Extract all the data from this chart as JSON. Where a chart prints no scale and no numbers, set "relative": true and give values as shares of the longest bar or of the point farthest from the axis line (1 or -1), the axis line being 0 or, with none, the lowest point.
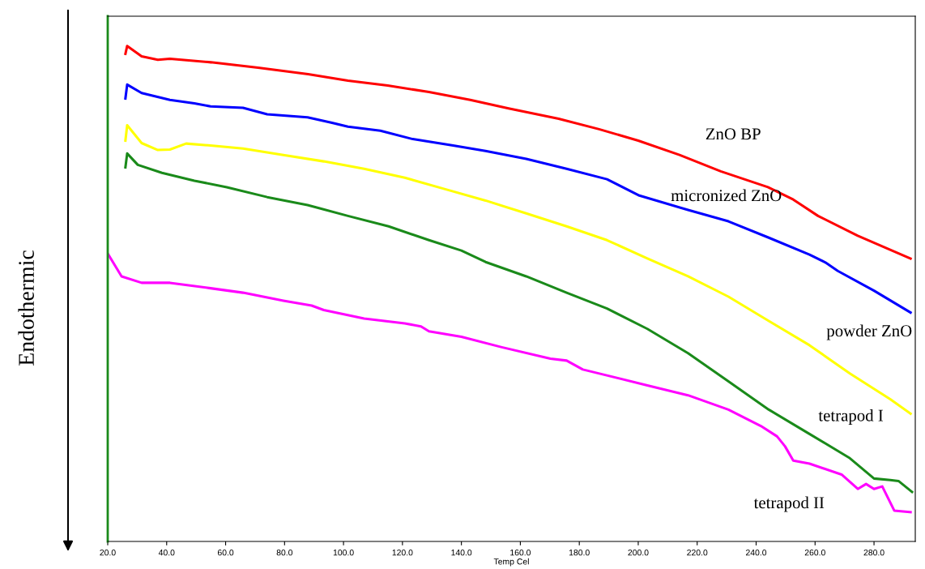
{
  "chart_data": {
    "type": "line",
    "relative": true,
    "xlabel": "Temp Cel",
    "ylabel": "Endothermic",
    "legend": false,
    "grid": false,
    "marker": "none",
    "line_style": "solid",
    "xlim": [
      20,
      294
    ],
    "xticks": [
      {
        "value": 20,
        "label": "20.0"
      },
      {
        "value": 40,
        "label": "40.0"
      },
      {
        "value": 60,
        "label": "60.0"
      },
      {
        "value": 80,
        "label": "80.0"
      },
      {
        "value": 100,
        "label": "100.0"
      },
      {
        "value": 120,
        "label": "120.0"
      },
      {
        "value": 140,
        "label": "140.0"
      },
      {
        "value": 160,
        "label": "160.0"
      },
      {
        "value": 180,
        "label": "180.0"
      },
      {
        "value": 200,
        "label": "200.0"
      },
      {
        "value": 220,
        "label": "220.0"
      },
      {
        "value": 240,
        "label": "240.0"
      },
      {
        "value": 260,
        "label": "260.0"
      },
      {
        "value": 280,
        "label": "280.0"
      }
    ],
    "series": [
      {
        "name": "ZnO BP",
        "color": "#ff0000",
        "x": [
          26.0,
          26.6,
          31.5,
          37.0,
          41.1,
          55.0,
          71.0,
          88.0,
          101.5,
          115.0,
          129.0,
          143.0,
          156.0,
          173.0,
          186.7,
          200.0,
          214.0,
          228.0,
          244.0,
          252.6,
          261.0,
          274.5,
          292.4
        ],
        "values": [
          0.984,
          1.0,
          0.979,
          0.972,
          0.974,
          0.967,
          0.956,
          0.943,
          0.93,
          0.92,
          0.907,
          0.891,
          0.874,
          0.853,
          0.832,
          0.809,
          0.78,
          0.747,
          0.715,
          0.69,
          0.657,
          0.617,
          0.571
        ]
      },
      {
        "name": "micronized ZnO",
        "color": "#0000ff",
        "x": [
          26.0,
          26.6,
          31.5,
          41.1,
          49.4,
          54.9,
          65.9,
          74.1,
          87.8,
          96.1,
          101.5,
          112.5,
          123.5,
          137.2,
          148.2,
          162.0,
          175.7,
          189.4,
          200.4,
          216.9,
          230.6,
          244.3,
          258.1,
          263.5,
          267.7,
          280.0,
          292.4
        ],
        "values": [
          0.894,
          0.922,
          0.905,
          0.891,
          0.884,
          0.878,
          0.875,
          0.862,
          0.856,
          0.845,
          0.837,
          0.829,
          0.812,
          0.799,
          0.788,
          0.772,
          0.752,
          0.731,
          0.698,
          0.669,
          0.646,
          0.613,
          0.579,
          0.563,
          0.546,
          0.506,
          0.462
        ]
      },
      {
        "name": "powder ZnO",
        "color": "#ffff00",
        "x": [
          26.0,
          26.6,
          31.5,
          37.0,
          41.1,
          46.6,
          54.9,
          65.9,
          79.6,
          93.3,
          107.0,
          120.8,
          134.5,
          148.2,
          162.0,
          175.7,
          189.4,
          203.1,
          216.9,
          230.6,
          244.3,
          258.1,
          271.8,
          285.5,
          292.4
        ],
        "values": [
          0.809,
          0.84,
          0.804,
          0.79,
          0.791,
          0.803,
          0.799,
          0.793,
          0.78,
          0.767,
          0.752,
          0.734,
          0.711,
          0.688,
          0.662,
          0.636,
          0.608,
          0.571,
          0.535,
          0.494,
          0.445,
          0.396,
          0.339,
          0.287,
          0.258
        ]
      },
      {
        "name": "tetrapod I",
        "color": "#1a8a1a",
        "x": [
          26.0,
          26.6,
          30.2,
          38.4,
          49.4,
          60.4,
          74.1,
          87.8,
          101.5,
          115.3,
          129.0,
          140.0,
          148.2,
          162.0,
          175.7,
          189.4,
          203.1,
          216.9,
          230.6,
          244.3,
          258.1,
          271.8,
          280.0,
          285.5,
          288.3,
          292.9
        ],
        "values": [
          0.755,
          0.783,
          0.76,
          0.744,
          0.728,
          0.715,
          0.695,
          0.679,
          0.657,
          0.636,
          0.608,
          0.587,
          0.564,
          0.535,
          0.502,
          0.47,
          0.429,
          0.38,
          0.323,
          0.266,
          0.217,
          0.168,
          0.127,
          0.124,
          0.122,
          0.1
        ]
      },
      {
        "name": "tetrapod II",
        "color": "#ff00ff",
        "x": [
          20.0,
          24.7,
          31.5,
          41.1,
          54.9,
          65.9,
          79.6,
          89.2,
          93.3,
          107.0,
          120.8,
          126.3,
          129.0,
          140.0,
          153.7,
          170.2,
          175.7,
          181.2,
          203.1,
          216.9,
          230.6,
          241.6,
          247.1,
          249.8,
          252.6,
          258.1,
          269.0,
          274.5,
          277.3,
          280.0,
          282.8,
          286.9,
          292.4
        ],
        "values": [
          0.581,
          0.535,
          0.522,
          0.522,
          0.511,
          0.502,
          0.486,
          0.476,
          0.467,
          0.45,
          0.44,
          0.434,
          0.424,
          0.413,
          0.392,
          0.369,
          0.365,
          0.347,
          0.315,
          0.295,
          0.266,
          0.233,
          0.212,
          0.192,
          0.163,
          0.157,
          0.135,
          0.106,
          0.116,
          0.106,
          0.111,
          0.062,
          0.059
        ]
      }
    ]
  }
}
